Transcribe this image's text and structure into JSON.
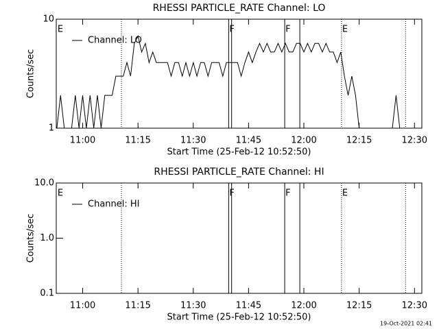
{
  "chart_data": [
    {
      "type": "line",
      "title": "RHESSI PARTICLE_RATE Channel: LO",
      "x_label": "Start Time (25-Feb-12 10:52:50)",
      "y_label": "Counts/sec",
      "xlim": [
        652.83,
        752
      ],
      "xticks": [
        {
          "value": 660,
          "label": "11:00"
        },
        {
          "value": 675,
          "label": "11:15"
        },
        {
          "value": 690,
          "label": "11:30"
        },
        {
          "value": 705,
          "label": "11:45"
        },
        {
          "value": 720,
          "label": "12:00"
        },
        {
          "value": 735,
          "label": "12:15"
        },
        {
          "value": 750,
          "label": "12:30"
        }
      ],
      "ylim": [
        1,
        10
      ],
      "yticks": [
        1,
        10
      ],
      "log_y": true,
      "legend": "upper left",
      "markers": [
        {
          "x": 653,
          "style": "none",
          "label": "E"
        },
        {
          "x": 670.5,
          "style": "dotted"
        },
        {
          "x": 699.6,
          "style": "solid",
          "label": "F"
        },
        {
          "x": 700.4,
          "style": "solid"
        },
        {
          "x": 714.8,
          "style": "solid",
          "label": "F"
        },
        {
          "x": 718.9,
          "style": "solid"
        },
        {
          "x": 730.2,
          "style": "dotted",
          "label": "E"
        },
        {
          "x": 747.6,
          "style": "dotted"
        }
      ],
      "series": [
        {
          "name": "Channel: LO",
          "color": "#000000",
          "x": [
            653,
            654,
            655,
            656,
            657,
            658,
            659,
            660,
            661,
            662,
            663,
            664,
            665,
            666,
            667,
            668,
            669,
            670,
            671,
            672,
            673,
            674,
            675,
            676,
            677,
            678,
            679,
            680,
            681,
            682,
            683,
            684,
            685,
            686,
            687,
            688,
            689,
            690,
            691,
            692,
            693,
            694,
            695,
            696,
            697,
            698,
            699,
            700,
            701,
            702,
            703,
            704,
            705,
            706,
            707,
            708,
            709,
            710,
            711,
            712,
            713,
            714,
            715,
            716,
            717,
            718,
            719,
            720,
            721,
            722,
            723,
            724,
            725,
            726,
            727,
            728,
            729,
            730,
            731,
            732,
            733,
            734,
            735,
            736,
            737,
            738,
            739,
            740,
            741,
            742,
            743,
            744,
            745,
            746,
            747,
            748,
            749
          ],
          "values": [
            1,
            2,
            1,
            1,
            1,
            2,
            1,
            2,
            1,
            2,
            1,
            2,
            1,
            2,
            2,
            2,
            3,
            3,
            3,
            4,
            3,
            6,
            7,
            5,
            6,
            4,
            5,
            4,
            4,
            4,
            4,
            3,
            4,
            4,
            3,
            4,
            3,
            4,
            3,
            4,
            4,
            3,
            4,
            4,
            4,
            3,
            4,
            4,
            4,
            4,
            3,
            4,
            5,
            4,
            5,
            6,
            5,
            6,
            5,
            5,
            6,
            5,
            6,
            5,
            5,
            6,
            6,
            5,
            6,
            5,
            6,
            6,
            5,
            6,
            5,
            5,
            4,
            5,
            3,
            2,
            3,
            2,
            1,
            1,
            1,
            1,
            1,
            1,
            1,
            1,
            1,
            1,
            2,
            1,
            null,
            null,
            null
          ]
        }
      ]
    },
    {
      "type": "line",
      "title": "RHESSI PARTICLE_RATE Channel: HI",
      "x_label": "Start Time (25-Feb-12 10:52:50)",
      "y_label": "Counts/sec",
      "xlim": [
        652.83,
        752
      ],
      "xticks": [
        {
          "value": 660,
          "label": "11:00"
        },
        {
          "value": 675,
          "label": "11:15"
        },
        {
          "value": 690,
          "label": "11:30"
        },
        {
          "value": 705,
          "label": "11:45"
        },
        {
          "value": 720,
          "label": "12:00"
        },
        {
          "value": 735,
          "label": "12:15"
        },
        {
          "value": 750,
          "label": "12:30"
        }
      ],
      "ylim": [
        0.1,
        10
      ],
      "yticks": [
        0.1,
        {
          "value": 1,
          "label": "1.0"
        },
        {
          "value": 10,
          "label": "10.0"
        }
      ],
      "log_y": true,
      "legend": "upper left",
      "markers": [
        {
          "x": 653,
          "style": "none",
          "label": "E"
        },
        {
          "x": 670.5,
          "style": "dotted"
        },
        {
          "x": 699.6,
          "style": "solid",
          "label": "F"
        },
        {
          "x": 700.4,
          "style": "solid"
        },
        {
          "x": 714.8,
          "style": "solid",
          "label": "F"
        },
        {
          "x": 718.9,
          "style": "solid"
        },
        {
          "x": 730.2,
          "style": "dotted",
          "label": "E"
        },
        {
          "x": 747.6,
          "style": "dotted"
        }
      ],
      "series": [
        {
          "name": "Channel: HI",
          "color": "#000000",
          "x": [],
          "values": []
        }
      ]
    }
  ],
  "footer": "19-Oct-2021 02:41"
}
